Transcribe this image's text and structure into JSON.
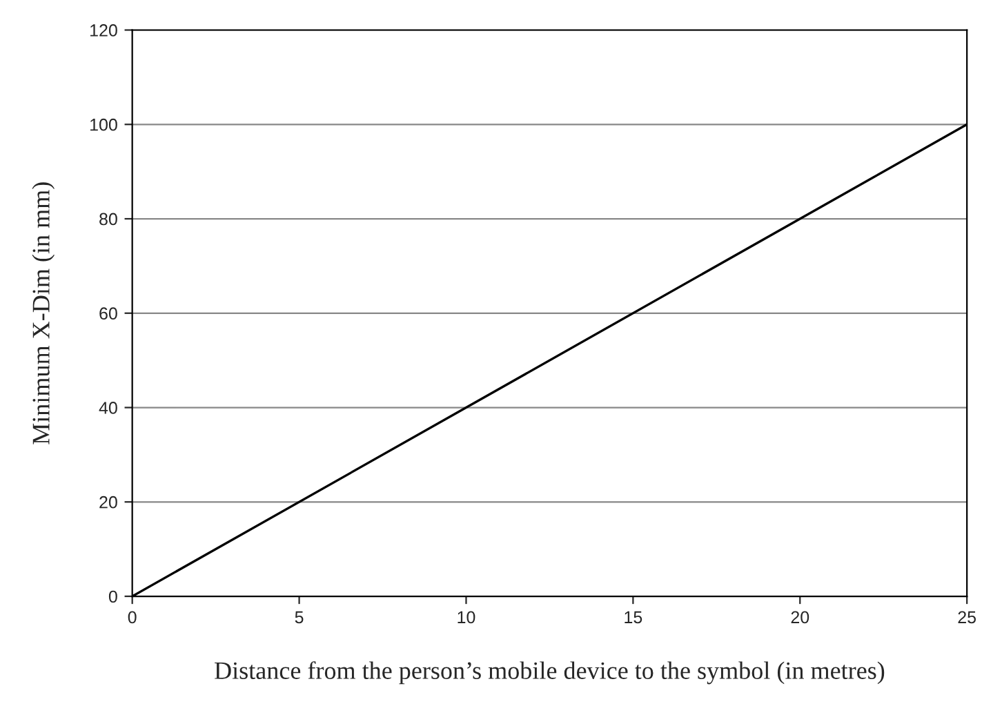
{
  "chart_data": {
    "type": "line",
    "xlabel": "Distance from the person’s mobile device to the symbol (in metres)",
    "ylabel": "Minimum X-Dim (in mm)",
    "x": [
      0,
      25
    ],
    "series": [
      {
        "color": "#000000",
        "values": [
          0,
          100
        ]
      }
    ],
    "xlim": [
      0,
      25
    ],
    "xticks": [
      0,
      5,
      10,
      15,
      20,
      25
    ],
    "ylim": [
      0,
      120
    ],
    "yticks": [
      0,
      20,
      40,
      60,
      80,
      100,
      120
    ],
    "grid": "y",
    "marker": "none",
    "line_style": "solid"
  }
}
